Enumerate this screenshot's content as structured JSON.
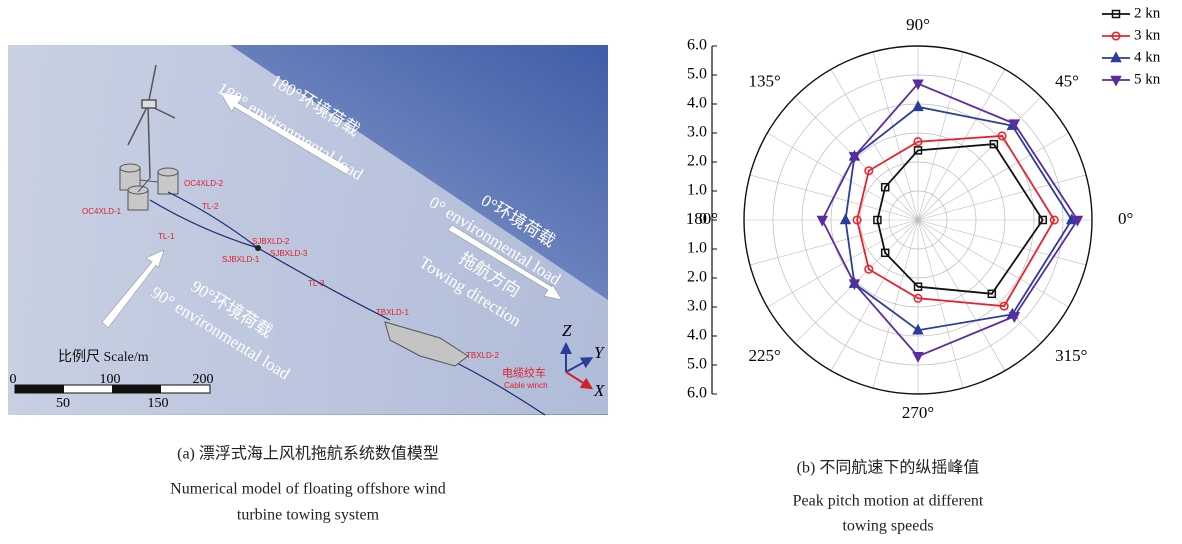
{
  "model": {
    "load_180_cn": "180°环境荷载",
    "load_180_en": "180° environmental load",
    "load_0_cn": "0°环境荷载",
    "load_0_en": "0° environmental load",
    "tow_cn": "拖航方向",
    "tow_en": "Towing direction",
    "load_90_cn": "90°环境荷载",
    "load_90_en": "90° environmental load",
    "parts": [
      "OC4XLD-2",
      "OC4XLD-1",
      "TL-2",
      "TL-1",
      "SJBXLD-2",
      "SJBXLD-3",
      "SJBXLD-1",
      "TL-3",
      "TBXLD-1",
      "TBXLD-2"
    ],
    "winch_cn": "电缆绞车",
    "winch_en": "Cable winch",
    "scale_title": "比例尺 Scale/m",
    "scale_top": [
      "0",
      "100",
      "200"
    ],
    "scale_bottom": [
      "50",
      "150"
    ],
    "axes": [
      "Z",
      "Y",
      "X"
    ],
    "caption": [
      "(a) 漂浮式海上风机拖航系统数值模型",
      "Numerical model of floating offshore wind",
      "turbine towing system"
    ]
  },
  "chart_data": {
    "type": "polar",
    "categories": [
      "0°",
      "45°",
      "90°",
      "135°",
      "180°",
      "225°",
      "270°",
      "315°"
    ],
    "rlim": [
      0,
      6
    ],
    "rticks": [
      0,
      {
        "value": 1,
        "label": "1.0"
      },
      {
        "value": 2,
        "label": "2.0"
      },
      {
        "value": 3,
        "label": "3.0"
      },
      {
        "value": 4,
        "label": "4.0"
      },
      {
        "value": 5,
        "label": "5.0"
      },
      {
        "value": 6,
        "label": "6.0"
      }
    ],
    "grid": true,
    "legend": "upper right",
    "series": [
      {
        "name": "2 kn",
        "color": "#111111",
        "marker": "square",
        "values": [
          4.3,
          3.7,
          2.4,
          1.6,
          1.4,
          1.6,
          2.3,
          3.6
        ]
      },
      {
        "name": "3 kn",
        "color": "#e8222c",
        "marker": "circle",
        "values": [
          4.7,
          4.1,
          2.7,
          2.4,
          2.1,
          2.4,
          2.7,
          4.2
        ]
      },
      {
        "name": "4 kn",
        "color": "#2a3c9e",
        "marker": "triangle-up",
        "values": [
          5.3,
          4.6,
          3.9,
          3.1,
          2.5,
          3.1,
          3.8,
          4.6
        ]
      },
      {
        "name": "5 kn",
        "color": "#5b2ca0",
        "marker": "triangle-down",
        "values": [
          5.5,
          4.7,
          4.7,
          3.1,
          3.3,
          3.1,
          4.7,
          4.7
        ]
      }
    ],
    "caption": [
      "(b) 不同航速下的纵摇峰值",
      "Peak pitch motion at different",
      "towing speeds"
    ]
  }
}
